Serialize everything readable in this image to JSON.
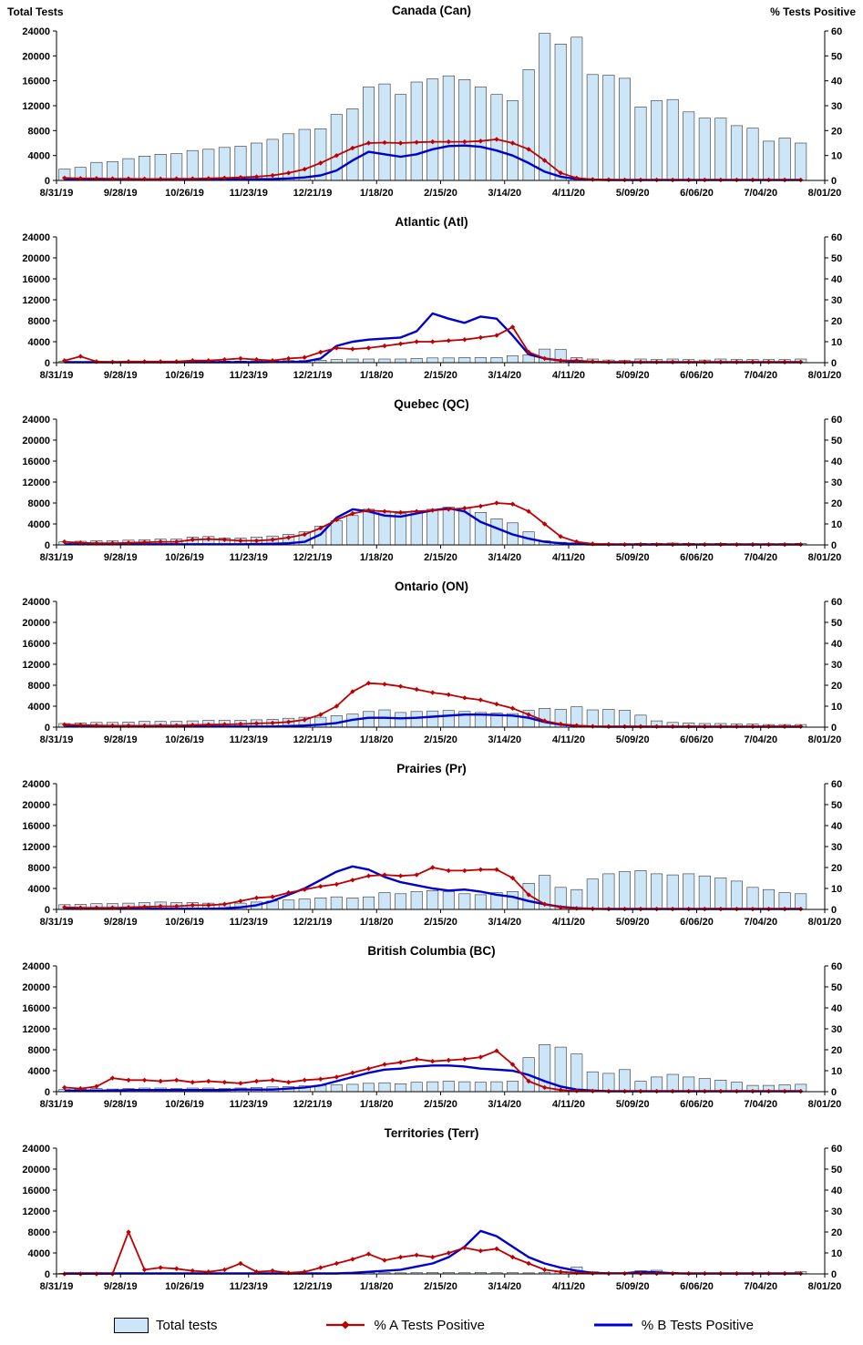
{
  "axes": {
    "left_label": "Total Tests",
    "right_label": "% Tests Positive",
    "left_ticks": [
      0,
      4000,
      8000,
      12000,
      16000,
      20000,
      24000
    ],
    "right_ticks": [
      0,
      10,
      20,
      30,
      40,
      50,
      60
    ],
    "ylim_left": [
      0,
      24000
    ],
    "ylim_right": [
      0,
      60
    ],
    "x_tick_labels": [
      "8/31/19",
      "9/28/19",
      "10/26/19",
      "11/23/19",
      "12/21/19",
      "1/18/20",
      "2/15/20",
      "3/14/20",
      "4/11/20",
      "5/09/20",
      "6/06/20",
      "7/04/20",
      "8/01/20"
    ]
  },
  "legend": {
    "total_tests": "Total tests",
    "a_positive": "% A Tests Positive",
    "b_positive": "% B Tests Positive"
  },
  "colors": {
    "bar_fill": "#cde6f7",
    "bar_stroke": "#333333",
    "a_line": "#c00000",
    "b_line": "#0000cc"
  },
  "chart_data": [
    {
      "type": "bar",
      "title": "Canada (Can)",
      "x_start": "8/31/19",
      "x_interval": "weekly",
      "n_weeks": 47,
      "series": {
        "total_tests": [
          1800,
          2100,
          2900,
          3000,
          3500,
          3900,
          4200,
          4300,
          4800,
          5000,
          5300,
          5500,
          6000,
          6600,
          7500,
          8200,
          8300,
          10600,
          11500,
          15000,
          15500,
          13800,
          15800,
          16300,
          16800,
          16200,
          15000,
          13800,
          12800,
          17800,
          23600,
          21900,
          23000,
          17000,
          16900,
          16400,
          11800,
          12800,
          13000,
          11000,
          10000,
          10000,
          8800,
          8400,
          6300,
          6800,
          6000
        ],
        "pct_a": [
          1,
          0.8,
          0.8,
          0.7,
          0.7,
          0.6,
          0.6,
          0.7,
          0.7,
          0.8,
          1,
          1.2,
          1.5,
          2,
          3,
          4.5,
          7,
          10,
          13,
          15,
          15.2,
          15,
          15.3,
          15.5,
          15.5,
          15.5,
          15.8,
          16.5,
          15,
          12.5,
          8,
          3,
          1,
          0.4,
          0.3,
          0.2,
          0.2,
          0.2,
          0.2,
          0.2,
          0.2,
          0.2,
          0.2,
          0.2,
          0.2,
          0.2,
          0.2
        ],
        "pct_b": [
          0.4,
          0.4,
          0.3,
          0.3,
          0.3,
          0.3,
          0.3,
          0.3,
          0.3,
          0.4,
          0.4,
          0.5,
          0.5,
          0.6,
          0.8,
          1.2,
          2,
          4,
          8,
          11.5,
          10.5,
          9.5,
          10.5,
          12.5,
          13.8,
          14,
          13.5,
          12,
          10,
          7,
          3.5,
          1.5,
          0.6,
          0.3,
          0.2,
          0.2,
          0.2,
          0.2,
          0.2,
          0.2,
          0.2,
          0.2,
          0.2,
          0.2,
          0.2,
          0.2,
          0.2
        ]
      }
    },
    {
      "type": "bar",
      "title": "Atlantic (Atl)",
      "x_start": "8/31/19",
      "x_interval": "weekly",
      "n_weeks": 47,
      "series": {
        "total_tests": [
          250,
          200,
          200,
          200,
          250,
          250,
          250,
          250,
          300,
          300,
          300,
          300,
          350,
          350,
          400,
          400,
          450,
          600,
          700,
          700,
          700,
          700,
          800,
          900,
          900,
          1000,
          1000,
          1000,
          1300,
          1500,
          2600,
          2500,
          1000,
          700,
          500,
          400,
          700,
          600,
          700,
          600,
          500,
          700,
          600,
          600,
          600,
          600,
          700
        ],
        "pct_a": [
          1,
          3,
          0.5,
          0.3,
          0.5,
          0.5,
          0.5,
          0.5,
          1,
          1,
          1.5,
          2,
          1.5,
          1,
          2,
          2.5,
          5,
          7,
          6.5,
          7,
          8,
          9,
          10,
          10,
          10.5,
          11,
          12,
          13,
          17,
          5,
          2,
          1,
          1,
          0.5,
          0.3,
          0.3,
          0.3,
          0.3,
          0.3,
          0.3,
          0.3,
          0.3,
          0.3,
          0.3,
          0.3,
          0.3,
          0.3
        ],
        "pct_b": [
          0.2,
          0.2,
          0.2,
          0.2,
          0.2,
          0.2,
          0.2,
          0.2,
          0.2,
          0.2,
          0.2,
          0.2,
          0.2,
          0.3,
          0.3,
          0.5,
          2,
          8,
          10,
          11,
          11.5,
          12,
          15,
          23.5,
          21,
          19,
          22,
          21,
          13,
          4,
          2,
          1,
          0.5,
          0.3,
          0.2,
          0.2,
          0.2,
          0.2,
          0.2,
          0.2,
          0.2,
          0.2,
          0.2,
          0.2,
          0.2,
          0.2,
          0.2
        ]
      }
    },
    {
      "type": "bar",
      "title": "Quebec (QC)",
      "x_start": "8/31/19",
      "x_interval": "weekly",
      "n_weeks": 47,
      "series": {
        "total_tests": [
          600,
          700,
          800,
          800,
          900,
          1000,
          1100,
          1100,
          1500,
          1600,
          1300,
          1300,
          1500,
          1700,
          2000,
          2500,
          3600,
          4600,
          5600,
          6800,
          6500,
          6000,
          6500,
          6800,
          7200,
          7000,
          6200,
          5000,
          4200,
          2500,
          800,
          500,
          400,
          300,
          250,
          250,
          300,
          300,
          350,
          300,
          250,
          300,
          250,
          250,
          250,
          250,
          300
        ],
        "pct_a": [
          1.5,
          1,
          0.8,
          0.8,
          1,
          1.2,
          1.5,
          1.5,
          2.5,
          2.8,
          2.5,
          2,
          2,
          2.5,
          3.5,
          5,
          8,
          12,
          15,
          16.5,
          16,
          15.5,
          16,
          16.5,
          17,
          17.5,
          18.5,
          20,
          19.5,
          16,
          10,
          4,
          1.5,
          0.5,
          0.3,
          0.2,
          0.2,
          0.2,
          0.2,
          0.2,
          0.2,
          0.2,
          0.2,
          0.2,
          0.2,
          0.2,
          0.2
        ],
        "pct_b": [
          0.3,
          0.3,
          0.3,
          0.3,
          0.3,
          0.3,
          0.3,
          0.3,
          0.3,
          0.3,
          0.3,
          0.3,
          0.4,
          0.5,
          0.8,
          1.5,
          5,
          13,
          17,
          16,
          14,
          13.5,
          15,
          16.5,
          17.5,
          16,
          11,
          8,
          5,
          3,
          1.5,
          0.8,
          0.4,
          0.2,
          0.2,
          0.2,
          0.2,
          0.2,
          0.2,
          0.2,
          0.2,
          0.2,
          0.2,
          0.2,
          0.2,
          0.2,
          0.2
        ]
      }
    },
    {
      "type": "bar",
      "title": "Ontario (ON)",
      "x_start": "8/31/19",
      "x_interval": "weekly",
      "n_weeks": 47,
      "series": {
        "total_tests": [
          700,
          800,
          900,
          900,
          1000,
          1100,
          1100,
          1100,
          1200,
          1300,
          1300,
          1300,
          1400,
          1500,
          1700,
          1900,
          1900,
          2200,
          2500,
          3000,
          3300,
          2800,
          3000,
          3100,
          3200,
          3000,
          2800,
          2700,
          2600,
          3200,
          3600,
          3400,
          3900,
          3300,
          3400,
          3200,
          2300,
          1200,
          900,
          800,
          700,
          700,
          600,
          600,
          500,
          500,
          500
        ],
        "pct_a": [
          1.2,
          1,
          0.8,
          0.7,
          0.7,
          0.7,
          0.8,
          0.8,
          1,
          1.2,
          1.3,
          1.5,
          1.8,
          2,
          2.5,
          3.5,
          6,
          10,
          17,
          21,
          20.5,
          19.5,
          18,
          16.5,
          15.5,
          14,
          13,
          11,
          9,
          6,
          3,
          1.5,
          0.8,
          0.4,
          0.3,
          0.3,
          0.3,
          0.3,
          0.3,
          0.3,
          0.3,
          0.3,
          0.3,
          0.3,
          0.3,
          0.3,
          0.3
        ],
        "pct_b": [
          0.3,
          0.3,
          0.3,
          0.3,
          0.3,
          0.3,
          0.3,
          0.3,
          0.3,
          0.3,
          0.3,
          0.3,
          0.3,
          0.3,
          0.5,
          0.8,
          1.2,
          2,
          3.5,
          4.5,
          4.5,
          4.2,
          4.5,
          5,
          5.5,
          6,
          6,
          5.8,
          5.5,
          4.5,
          2.5,
          1.2,
          0.6,
          0.3,
          0.2,
          0.2,
          0.2,
          0.2,
          0.2,
          0.2,
          0.2,
          0.2,
          0.2,
          0.2,
          0.2,
          0.2,
          0.2
        ]
      }
    },
    {
      "type": "bar",
      "title": "Prairies (Pr)",
      "x_start": "8/31/19",
      "x_interval": "weekly",
      "n_weeks": 47,
      "series": {
        "total_tests": [
          900,
          1000,
          1100,
          1100,
          1200,
          1300,
          1400,
          1300,
          1300,
          1200,
          1100,
          1200,
          1400,
          1600,
          1800,
          2000,
          2200,
          2400,
          2200,
          2400,
          3200,
          3000,
          3400,
          3600,
          3400,
          3000,
          2800,
          3200,
          3400,
          5000,
          6500,
          4200,
          3800,
          5800,
          6800,
          7200,
          7400,
          6800,
          6600,
          6800,
          6400,
          6000,
          5400,
          4200,
          3800,
          3200,
          3000
        ],
        "pct_a": [
          1,
          0.8,
          0.8,
          0.8,
          1,
          1.2,
          1.5,
          1.5,
          2,
          2,
          2.5,
          4,
          5.5,
          6,
          8,
          9.5,
          11,
          12,
          14,
          16,
          16.5,
          16,
          16.5,
          20,
          18.5,
          18.5,
          19,
          19,
          15,
          7,
          2.5,
          1,
          0.5,
          0.3,
          0.2,
          0.2,
          0.2,
          0.2,
          0.2,
          0.2,
          0.2,
          0.2,
          0.2,
          0.2,
          0.2,
          0.2,
          0.2
        ],
        "pct_b": [
          0.3,
          0.3,
          0.3,
          0.3,
          0.3,
          0.3,
          0.3,
          0.3,
          0.3,
          0.3,
          0.5,
          1,
          2,
          4,
          7,
          10,
          14,
          18,
          20.5,
          19,
          15.5,
          13,
          11.5,
          10,
          9,
          9.5,
          8.5,
          7,
          6,
          4,
          2.5,
          1.2,
          0.6,
          0.3,
          0.2,
          0.2,
          0.2,
          0.2,
          0.2,
          0.2,
          0.2,
          0.2,
          0.2,
          0.2,
          0.2,
          0.2,
          0.2
        ]
      }
    },
    {
      "type": "bar",
      "title": "British Columbia (BC)",
      "x_start": "8/31/19",
      "x_interval": "weekly",
      "n_weeks": 47,
      "series": {
        "total_tests": [
          400,
          500,
          600,
          500,
          600,
          700,
          700,
          600,
          700,
          700,
          600,
          700,
          800,
          900,
          1000,
          1100,
          1200,
          1300,
          1400,
          1600,
          1700,
          1500,
          1800,
          1900,
          2000,
          1900,
          1800,
          1900,
          2000,
          6500,
          9000,
          8500,
          7200,
          3800,
          3500,
          4200,
          2000,
          2800,
          3300,
          2800,
          2500,
          2200,
          1800,
          1200,
          1200,
          1300,
          1400
        ],
        "pct_a": [
          2,
          1.5,
          2.5,
          6.5,
          5.5,
          5.5,
          5,
          5.5,
          4.5,
          5,
          4.5,
          4,
          5,
          5.5,
          4.5,
          5.5,
          6,
          7,
          9,
          11,
          13,
          14,
          15.5,
          14.5,
          15,
          15.5,
          16.5,
          19.5,
          13,
          5,
          2,
          0.8,
          0.4,
          0.3,
          0.2,
          0.2,
          0.2,
          0.2,
          0.2,
          0.2,
          0.2,
          0.2,
          0.2,
          0.2,
          0.2,
          0.2,
          0.2
        ],
        "pct_b": [
          0.5,
          0.5,
          0.5,
          0.5,
          0.8,
          0.8,
          0.8,
          0.8,
          0.8,
          0.8,
          0.8,
          1,
          1,
          1,
          1.5,
          2,
          3,
          5,
          7,
          9,
          10.5,
          11,
          12,
          12.5,
          12.5,
          12,
          11,
          10.5,
          10,
          8,
          5,
          2.5,
          1,
          0.5,
          0.2,
          0.2,
          0.2,
          0.2,
          0.2,
          0.2,
          0.2,
          0.2,
          0.2,
          0.2,
          0.2,
          0.2,
          0.2
        ]
      }
    },
    {
      "type": "bar",
      "title": "Territories (Terr)",
      "x_start": "8/31/19",
      "x_interval": "weekly",
      "n_weeks": 47,
      "series": {
        "total_tests": [
          100,
          100,
          100,
          100,
          150,
          100,
          100,
          100,
          150,
          100,
          100,
          150,
          150,
          100,
          150,
          150,
          200,
          200,
          200,
          250,
          250,
          200,
          250,
          300,
          300,
          250,
          300,
          250,
          250,
          200,
          300,
          400,
          1300,
          400,
          200,
          150,
          600,
          700,
          300,
          200,
          150,
          150,
          100,
          100,
          100,
          100,
          400
        ],
        "pct_a": [
          0,
          0,
          0,
          0,
          20,
          2,
          3,
          2.5,
          1.5,
          1,
          2,
          5,
          1,
          1.5,
          0.5,
          1,
          3,
          5,
          7,
          9.5,
          6.5,
          8,
          9,
          8,
          10,
          12.5,
          11,
          12,
          8,
          5,
          2,
          1,
          0.5,
          0.3,
          0.2,
          0.2,
          0.2,
          0.2,
          0.2,
          0.2,
          0.2,
          0.2,
          0.2,
          0.2,
          0.2,
          0.2,
          0.2
        ],
        "pct_b": [
          0.2,
          0.2,
          0.2,
          0.2,
          0.2,
          0.2,
          0.2,
          0.2,
          0.2,
          0.2,
          0.2,
          0.2,
          0.2,
          0.2,
          0.2,
          0.2,
          0.2,
          0.2,
          0.5,
          1,
          1.5,
          2,
          3.5,
          5,
          8,
          13,
          20.5,
          18,
          13,
          8,
          5,
          3,
          1.5,
          0.5,
          0.3,
          0.3,
          1,
          0.8,
          0.3,
          0.2,
          0.2,
          0.2,
          0.2,
          0.2,
          0.2,
          0.2,
          0.2
        ]
      }
    }
  ]
}
